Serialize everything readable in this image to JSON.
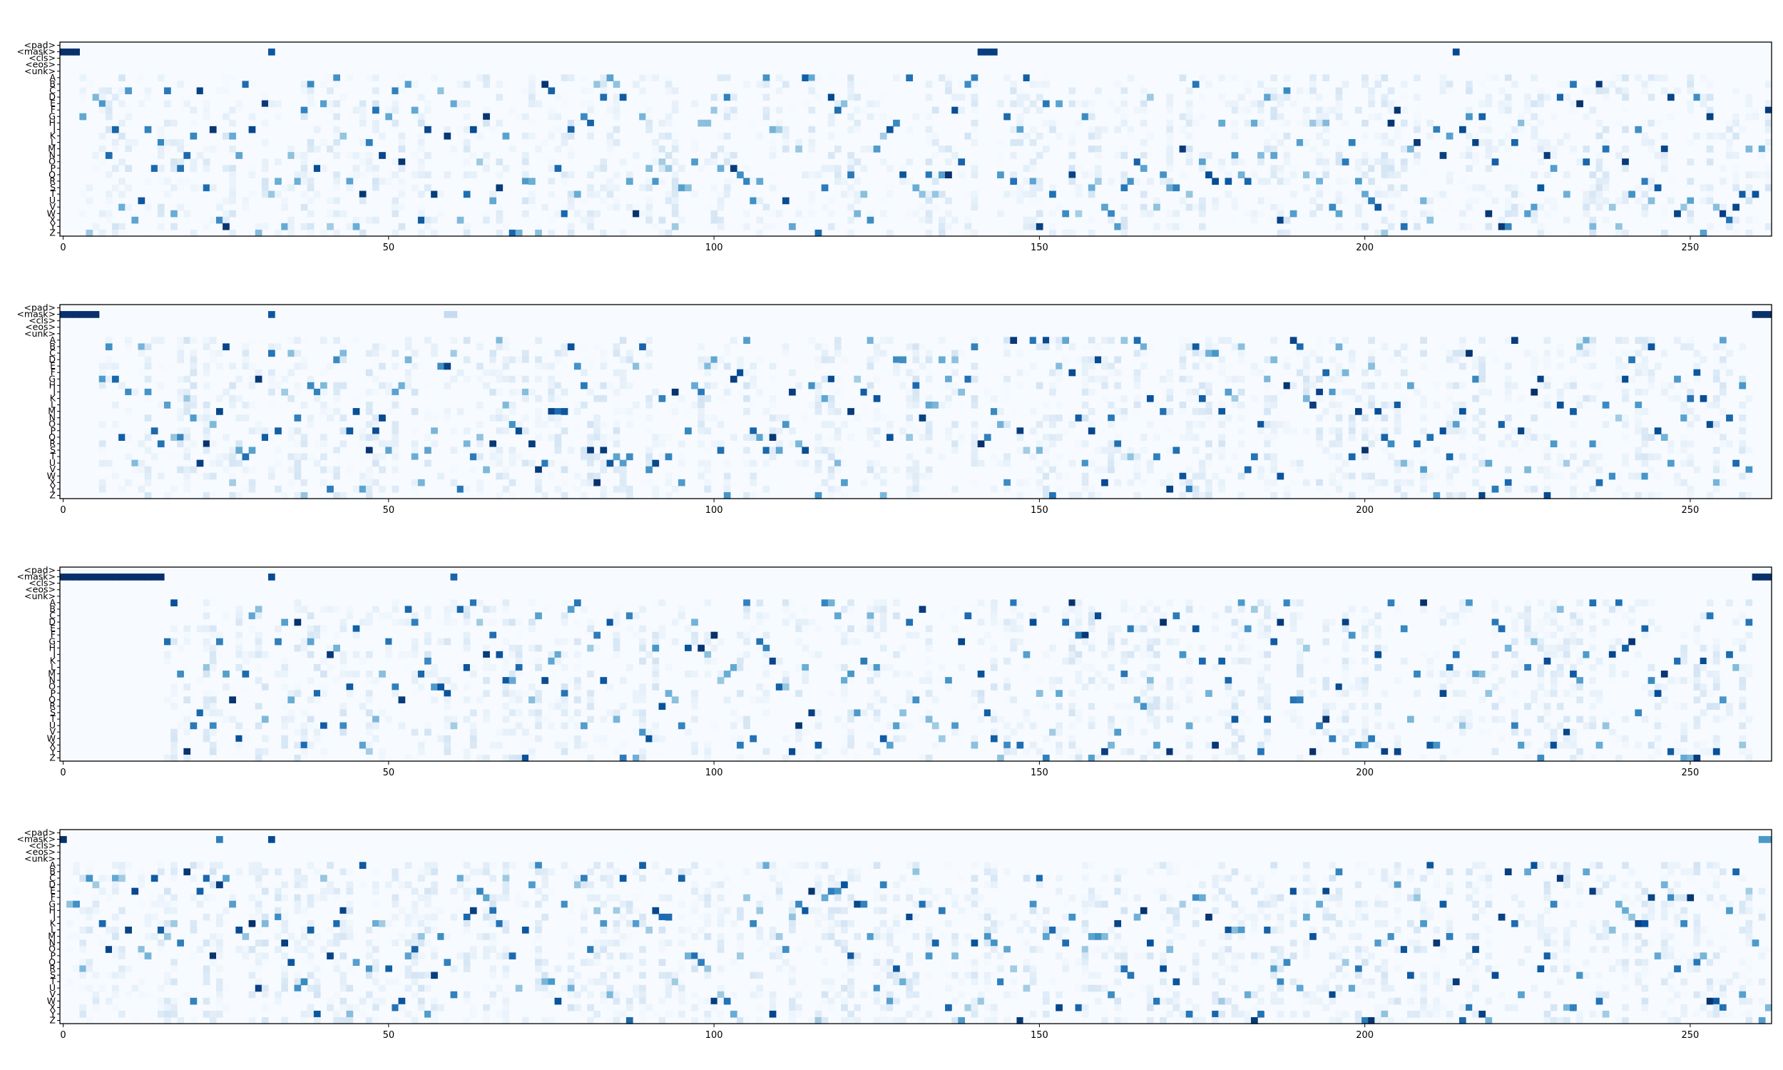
{
  "chart_data": {
    "type": "heatmap",
    "colormap": "Blues",
    "value_range": [
      0,
      1
    ],
    "y_labels": [
      "<pad>",
      "<mask>",
      "<cls>",
      "<eos>",
      "<unk>",
      "A",
      "B",
      "C",
      "D",
      "E",
      "F",
      "G",
      "H",
      "I",
      "K",
      "L",
      "M",
      "N",
      "O",
      "P",
      "Q",
      "R",
      "S",
      "T",
      "U",
      "V",
      "W",
      "X",
      "Y",
      "Z"
    ],
    "x_range": [
      0,
      262
    ],
    "x_ticks": [
      0,
      50,
      100,
      150,
      200,
      250
    ],
    "x_tick_labels": [
      "0",
      "50",
      "100",
      "150",
      "200",
      "250"
    ],
    "panels": [
      {
        "mask_strips": [
          {
            "from": 0,
            "to": 2,
            "value": 1.0
          },
          {
            "from": 32,
            "to": 32,
            "value": 0.85
          },
          {
            "from": 141,
            "to": 143,
            "value": 0.95
          },
          {
            "from": 214,
            "to": 214,
            "value": 0.9
          }
        ],
        "seed": 11
      },
      {
        "mask_strips": [
          {
            "from": 0,
            "to": 5,
            "value": 1.0
          },
          {
            "from": 32,
            "to": 32,
            "value": 0.85
          },
          {
            "from": 59,
            "to": 60,
            "value": 0.25
          },
          {
            "from": 260,
            "to": 262,
            "value": 1.0
          }
        ],
        "seed": 23
      },
      {
        "mask_strips": [
          {
            "from": 0,
            "to": 15,
            "value": 1.0
          },
          {
            "from": 32,
            "to": 32,
            "value": 0.9
          },
          {
            "from": 60,
            "to": 60,
            "value": 0.8
          },
          {
            "from": 260,
            "to": 262,
            "value": 1.0
          }
        ],
        "seed": 37
      },
      {
        "mask_strips": [
          {
            "from": 0,
            "to": 0,
            "value": 1.0
          },
          {
            "from": 24,
            "to": 24,
            "value": 0.7
          },
          {
            "from": 32,
            "to": 32,
            "value": 0.9
          },
          {
            "from": 261,
            "to": 262,
            "value": 0.6
          }
        ],
        "seed": 53
      }
    ]
  }
}
